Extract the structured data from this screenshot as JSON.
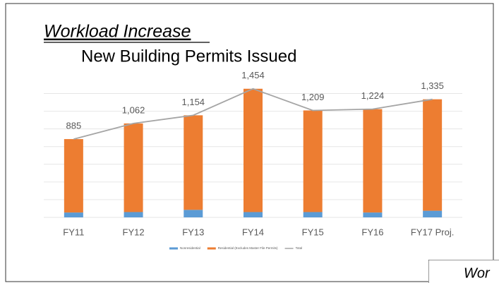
{
  "slide": {
    "title": "Workload Increase",
    "subtitle": "New Building Permits Issued",
    "next_slide_title": "Wor"
  },
  "chart_data": {
    "type": "bar",
    "stacked": true,
    "categories": [
      "FY11",
      "FY12",
      "FY13",
      "FY14",
      "FY15",
      "FY16",
      "FY17 Proj."
    ],
    "series": [
      {
        "name": "Nonresidential",
        "color": "#5b9bd5",
        "values": [
          55,
          60,
          85,
          60,
          60,
          55,
          75
        ]
      },
      {
        "name": "Residential (Excludes Master File Permits)",
        "color": "#ed7d31",
        "values": [
          830,
          1002,
          1069,
          1394,
          1149,
          1169,
          1260
        ]
      },
      {
        "name": "Total",
        "type": "line",
        "color": "#a5a5a5",
        "values": [
          885,
          1062,
          1154,
          1454,
          1209,
          1224,
          1335
        ],
        "value_labels": [
          "885",
          "1,062",
          "1,154",
          "1,454",
          "1,209",
          "1,224",
          "1,335"
        ]
      }
    ],
    "ylim": [
      0,
      1500
    ],
    "yticks": [
      0,
      200,
      400,
      600,
      800,
      1000,
      1200,
      1400
    ],
    "grid": true,
    "legend": "bottom"
  }
}
